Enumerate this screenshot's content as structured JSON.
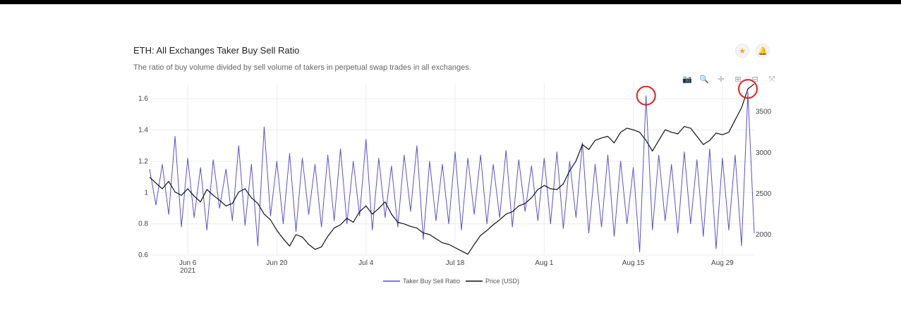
{
  "header": {
    "title": "ETH: All Exchanges Taker Buy Sell Ratio",
    "subtitle": "The ratio of buy volume divided by sell volume of takers in perpetual swap trades in all exchanges."
  },
  "actions": {
    "favorite_icon": "star-icon",
    "alert_icon": "bell-icon",
    "favorite_glyph": "★",
    "alert_glyph": "🔔"
  },
  "modebar": [
    {
      "name": "camera-icon",
      "glyph": "📷"
    },
    {
      "name": "zoom-icon",
      "glyph": "🔍"
    },
    {
      "name": "pan-icon",
      "glyph": "✛"
    },
    {
      "name": "zoom-in-icon",
      "glyph": "⊞"
    },
    {
      "name": "zoom-out-icon",
      "glyph": "⊟"
    },
    {
      "name": "autoscale-icon",
      "glyph": "⤧"
    }
  ],
  "colors": {
    "ratio": "#5b4fd6",
    "price": "#111111",
    "highlight": "#e02020",
    "grid": "#ececec"
  },
  "chart_data": {
    "type": "line",
    "x_range": [
      "2021-05-31",
      "2021-09-03"
    ],
    "x_ticks": [
      {
        "date": "2021-06-06",
        "label": "Jun 6",
        "sublabel": "2021"
      },
      {
        "date": "2021-06-20",
        "label": "Jun 20"
      },
      {
        "date": "2021-07-04",
        "label": "Jul 4"
      },
      {
        "date": "2021-07-18",
        "label": "Jul 18"
      },
      {
        "date": "2021-08-01",
        "label": "Aug 1"
      },
      {
        "date": "2021-08-15",
        "label": "Aug 15"
      },
      {
        "date": "2021-08-29",
        "label": "Aug 29"
      }
    ],
    "y_left": {
      "range": [
        0.6,
        1.7
      ],
      "ticks": [
        0.6,
        0.8,
        1,
        1.2,
        1.4,
        1.6
      ],
      "tick_labels": [
        "0.6",
        "0.8",
        "1",
        "1.2",
        "1.4",
        "1.6"
      ]
    },
    "y_right": {
      "range": [
        1750,
        3850
      ],
      "ticks": [
        2000,
        2500,
        3000,
        3500
      ],
      "tick_labels": [
        "2000",
        "2500",
        "3000",
        "3500"
      ]
    },
    "grid": true,
    "legend_position": "bottom-center",
    "series": [
      {
        "name": "Taker Buy Sell Ratio",
        "axis": "left",
        "color": "#5b4fd6",
        "points": [
          [
            "2021-05-31",
            1.15
          ],
          [
            "2021-06-01",
            0.92
          ],
          [
            "2021-06-02",
            1.18
          ],
          [
            "2021-06-03",
            0.86
          ],
          [
            "2021-06-04",
            1.36
          ],
          [
            "2021-06-05",
            0.78
          ],
          [
            "2021-06-06",
            1.22
          ],
          [
            "2021-06-07",
            0.84
          ],
          [
            "2021-06-08",
            1.16
          ],
          [
            "2021-06-09",
            0.76
          ],
          [
            "2021-06-10",
            1.21
          ],
          [
            "2021-06-11",
            0.9
          ],
          [
            "2021-06-12",
            1.15
          ],
          [
            "2021-06-13",
            0.82
          ],
          [
            "2021-06-14",
            1.3
          ],
          [
            "2021-06-15",
            0.79
          ],
          [
            "2021-06-16",
            1.18
          ],
          [
            "2021-06-17",
            0.66
          ],
          [
            "2021-06-18",
            1.42
          ],
          [
            "2021-06-19",
            0.85
          ],
          [
            "2021-06-20",
            1.2
          ],
          [
            "2021-06-21",
            0.8
          ],
          [
            "2021-06-22",
            1.25
          ],
          [
            "2021-06-23",
            0.75
          ],
          [
            "2021-06-24",
            1.22
          ],
          [
            "2021-06-25",
            0.86
          ],
          [
            "2021-06-26",
            1.18
          ],
          [
            "2021-06-27",
            0.78
          ],
          [
            "2021-06-28",
            1.24
          ],
          [
            "2021-06-29",
            0.82
          ],
          [
            "2021-06-30",
            1.28
          ],
          [
            "2021-07-01",
            0.8
          ],
          [
            "2021-07-02",
            1.2
          ],
          [
            "2021-07-03",
            0.85
          ],
          [
            "2021-07-04",
            1.34
          ],
          [
            "2021-07-05",
            0.76
          ],
          [
            "2021-07-06",
            1.22
          ],
          [
            "2021-07-07",
            0.84
          ],
          [
            "2021-07-08",
            1.17
          ],
          [
            "2021-07-09",
            0.78
          ],
          [
            "2021-07-10",
            1.24
          ],
          [
            "2021-07-11",
            0.88
          ],
          [
            "2021-07-12",
            1.3
          ],
          [
            "2021-07-13",
            0.7
          ],
          [
            "2021-07-14",
            1.2
          ],
          [
            "2021-07-15",
            0.82
          ],
          [
            "2021-07-16",
            1.18
          ],
          [
            "2021-07-17",
            0.8
          ],
          [
            "2021-07-18",
            1.26
          ],
          [
            "2021-07-19",
            0.76
          ],
          [
            "2021-07-20",
            1.22
          ],
          [
            "2021-07-21",
            0.86
          ],
          [
            "2021-07-22",
            1.24
          ],
          [
            "2021-07-23",
            0.8
          ],
          [
            "2021-07-24",
            1.18
          ],
          [
            "2021-07-25",
            0.84
          ],
          [
            "2021-07-26",
            1.27
          ],
          [
            "2021-07-27",
            0.78
          ],
          [
            "2021-07-28",
            1.21
          ],
          [
            "2021-07-29",
            0.88
          ],
          [
            "2021-07-30",
            1.17
          ],
          [
            "2021-07-31",
            0.82
          ],
          [
            "2021-08-01",
            1.22
          ],
          [
            "2021-08-02",
            0.8
          ],
          [
            "2021-08-03",
            1.26
          ],
          [
            "2021-08-04",
            0.77
          ],
          [
            "2021-08-05",
            1.2
          ],
          [
            "2021-08-06",
            0.84
          ],
          [
            "2021-08-07",
            1.32
          ],
          [
            "2021-08-08",
            0.74
          ],
          [
            "2021-08-09",
            1.18
          ],
          [
            "2021-08-10",
            0.78
          ],
          [
            "2021-08-11",
            1.24
          ],
          [
            "2021-08-12",
            0.72
          ],
          [
            "2021-08-13",
            1.2
          ],
          [
            "2021-08-14",
            0.8
          ],
          [
            "2021-08-15",
            1.16
          ],
          [
            "2021-08-16",
            0.62
          ],
          [
            "2021-08-17",
            1.62
          ],
          [
            "2021-08-18",
            0.76
          ],
          [
            "2021-08-19",
            1.24
          ],
          [
            "2021-08-20",
            0.82
          ],
          [
            "2021-08-21",
            1.18
          ],
          [
            "2021-08-22",
            0.74
          ],
          [
            "2021-08-23",
            1.26
          ],
          [
            "2021-08-24",
            0.8
          ],
          [
            "2021-08-25",
            1.21
          ],
          [
            "2021-08-26",
            0.72
          ],
          [
            "2021-08-27",
            1.28
          ],
          [
            "2021-08-28",
            0.64
          ],
          [
            "2021-08-29",
            1.22
          ],
          [
            "2021-08-30",
            0.76
          ],
          [
            "2021-08-31",
            1.24
          ],
          [
            "2021-09-01",
            0.66
          ],
          [
            "2021-09-02",
            1.64
          ],
          [
            "2021-09-03",
            0.74
          ]
        ]
      },
      {
        "name": "Price (USD)",
        "axis": "right",
        "color": "#111111",
        "points": [
          [
            "2021-05-31",
            2700
          ],
          [
            "2021-06-01",
            2630
          ],
          [
            "2021-06-02",
            2560
          ],
          [
            "2021-06-03",
            2650
          ],
          [
            "2021-06-04",
            2520
          ],
          [
            "2021-06-05",
            2480
          ],
          [
            "2021-06-06",
            2560
          ],
          [
            "2021-06-07",
            2470
          ],
          [
            "2021-06-08",
            2400
          ],
          [
            "2021-06-09",
            2550
          ],
          [
            "2021-06-10",
            2480
          ],
          [
            "2021-06-11",
            2420
          ],
          [
            "2021-06-12",
            2350
          ],
          [
            "2021-06-13",
            2380
          ],
          [
            "2021-06-14",
            2520
          ],
          [
            "2021-06-15",
            2560
          ],
          [
            "2021-06-16",
            2450
          ],
          [
            "2021-06-17",
            2380
          ],
          [
            "2021-06-18",
            2250
          ],
          [
            "2021-06-19",
            2180
          ],
          [
            "2021-06-20",
            2050
          ],
          [
            "2021-06-21",
            1950
          ],
          [
            "2021-06-22",
            1860
          ],
          [
            "2021-06-23",
            2000
          ],
          [
            "2021-06-24",
            1970
          ],
          [
            "2021-06-25",
            1880
          ],
          [
            "2021-06-26",
            1820
          ],
          [
            "2021-06-27",
            1850
          ],
          [
            "2021-06-28",
            1980
          ],
          [
            "2021-06-29",
            2080
          ],
          [
            "2021-06-30",
            2120
          ],
          [
            "2021-07-01",
            2200
          ],
          [
            "2021-07-02",
            2150
          ],
          [
            "2021-07-03",
            2280
          ],
          [
            "2021-07-04",
            2350
          ],
          [
            "2021-07-05",
            2250
          ],
          [
            "2021-07-06",
            2320
          ],
          [
            "2021-07-07",
            2400
          ],
          [
            "2021-07-08",
            2250
          ],
          [
            "2021-07-09",
            2150
          ],
          [
            "2021-07-10",
            2130
          ],
          [
            "2021-07-11",
            2100
          ],
          [
            "2021-07-12",
            2080
          ],
          [
            "2021-07-13",
            2020
          ],
          [
            "2021-07-14",
            2000
          ],
          [
            "2021-07-15",
            1950
          ],
          [
            "2021-07-16",
            1900
          ],
          [
            "2021-07-17",
            1880
          ],
          [
            "2021-07-18",
            1840
          ],
          [
            "2021-07-19",
            1800
          ],
          [
            "2021-07-20",
            1760
          ],
          [
            "2021-07-21",
            1880
          ],
          [
            "2021-07-22",
            1990
          ],
          [
            "2021-07-23",
            2050
          ],
          [
            "2021-07-24",
            2120
          ],
          [
            "2021-07-25",
            2180
          ],
          [
            "2021-07-26",
            2250
          ],
          [
            "2021-07-27",
            2280
          ],
          [
            "2021-07-28",
            2350
          ],
          [
            "2021-07-29",
            2380
          ],
          [
            "2021-07-30",
            2450
          ],
          [
            "2021-07-31",
            2550
          ],
          [
            "2021-08-01",
            2600
          ],
          [
            "2021-08-02",
            2560
          ],
          [
            "2021-08-03",
            2550
          ],
          [
            "2021-08-04",
            2620
          ],
          [
            "2021-08-05",
            2780
          ],
          [
            "2021-08-06",
            2900
          ],
          [
            "2021-08-07",
            3100
          ],
          [
            "2021-08-08",
            3040
          ],
          [
            "2021-08-09",
            3150
          ],
          [
            "2021-08-10",
            3180
          ],
          [
            "2021-08-11",
            3200
          ],
          [
            "2021-08-12",
            3120
          ],
          [
            "2021-08-13",
            3250
          ],
          [
            "2021-08-14",
            3300
          ],
          [
            "2021-08-15",
            3280
          ],
          [
            "2021-08-16",
            3250
          ],
          [
            "2021-08-17",
            3150
          ],
          [
            "2021-08-18",
            3020
          ],
          [
            "2021-08-19",
            3150
          ],
          [
            "2021-08-20",
            3280
          ],
          [
            "2021-08-21",
            3250
          ],
          [
            "2021-08-22",
            3230
          ],
          [
            "2021-08-23",
            3320
          ],
          [
            "2021-08-24",
            3300
          ],
          [
            "2021-08-25",
            3200
          ],
          [
            "2021-08-26",
            3100
          ],
          [
            "2021-08-27",
            3150
          ],
          [
            "2021-08-28",
            3240
          ],
          [
            "2021-08-29",
            3220
          ],
          [
            "2021-08-30",
            3250
          ],
          [
            "2021-08-31",
            3400
          ],
          [
            "2021-09-01",
            3550
          ],
          [
            "2021-09-02",
            3780
          ],
          [
            "2021-09-03",
            3840
          ]
        ]
      }
    ],
    "highlights": [
      {
        "date": "2021-08-17",
        "value": 1.62,
        "axis": "left"
      },
      {
        "date": "2021-09-02",
        "value": 3780,
        "axis": "right"
      }
    ]
  }
}
